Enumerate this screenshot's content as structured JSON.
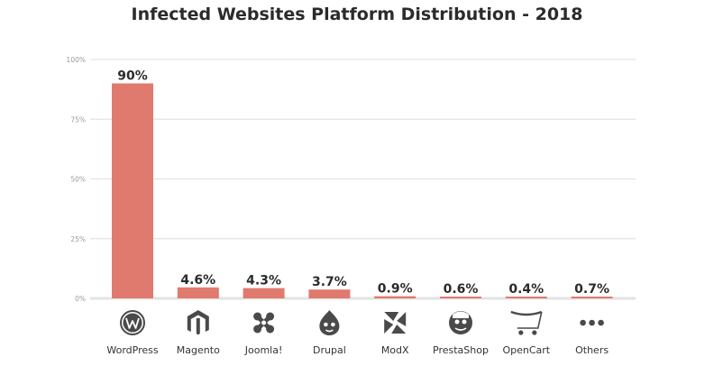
{
  "chart_data": {
    "type": "bar",
    "title": "Infected Websites Platform Distribution - 2018",
    "xlabel": "",
    "ylabel": "",
    "ylim": [
      0,
      100
    ],
    "yticks": [
      0,
      25,
      50,
      75,
      100
    ],
    "ytick_labels": [
      "0%",
      "25%",
      "50%",
      "75%",
      "100%"
    ],
    "grid": true,
    "categories": [
      "WordPress",
      "Magento",
      "Joomla!",
      "Drupal",
      "ModX",
      "PrestaShop",
      "OpenCart",
      "Others"
    ],
    "values": [
      90,
      4.6,
      4.3,
      3.7,
      0.9,
      0.6,
      0.4,
      0.7
    ],
    "value_labels": [
      "90%",
      "4.6%",
      "4.3%",
      "3.7%",
      "0.9%",
      "0.6%",
      "0.4%",
      "0.7%"
    ],
    "icons": [
      "wordpress-icon",
      "magento-icon",
      "joomla-icon",
      "drupal-icon",
      "modx-icon",
      "prestashop-icon",
      "opencart-icon",
      "others-icon"
    ],
    "colors": {
      "bar": "#e07a6e",
      "grid": "#e3e3e3",
      "baseline": "#e3e3e3",
      "icon": "#4a4a4a"
    }
  }
}
